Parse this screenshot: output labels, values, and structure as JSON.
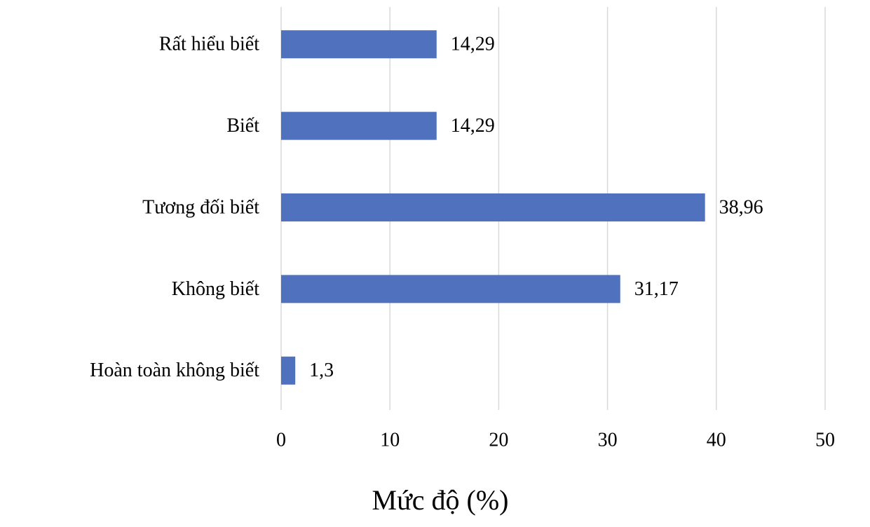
{
  "chart_data": {
    "type": "bar",
    "orientation": "horizontal",
    "categories": [
      "Rất hiểu biết",
      "Biết",
      "Tương đối biết",
      "Không biết",
      "Hoàn toàn không biết"
    ],
    "values": [
      14.29,
      14.29,
      38.96,
      31.17,
      1.3
    ],
    "value_labels": [
      "14,29",
      "14,29",
      "38,96",
      "31,17",
      "1,3"
    ],
    "color": "#4f71be",
    "xlim": [
      0,
      50
    ],
    "xticks": [
      0,
      10,
      20,
      30,
      40,
      50
    ],
    "x_label": "Mức độ (%)",
    "grid": true
  }
}
